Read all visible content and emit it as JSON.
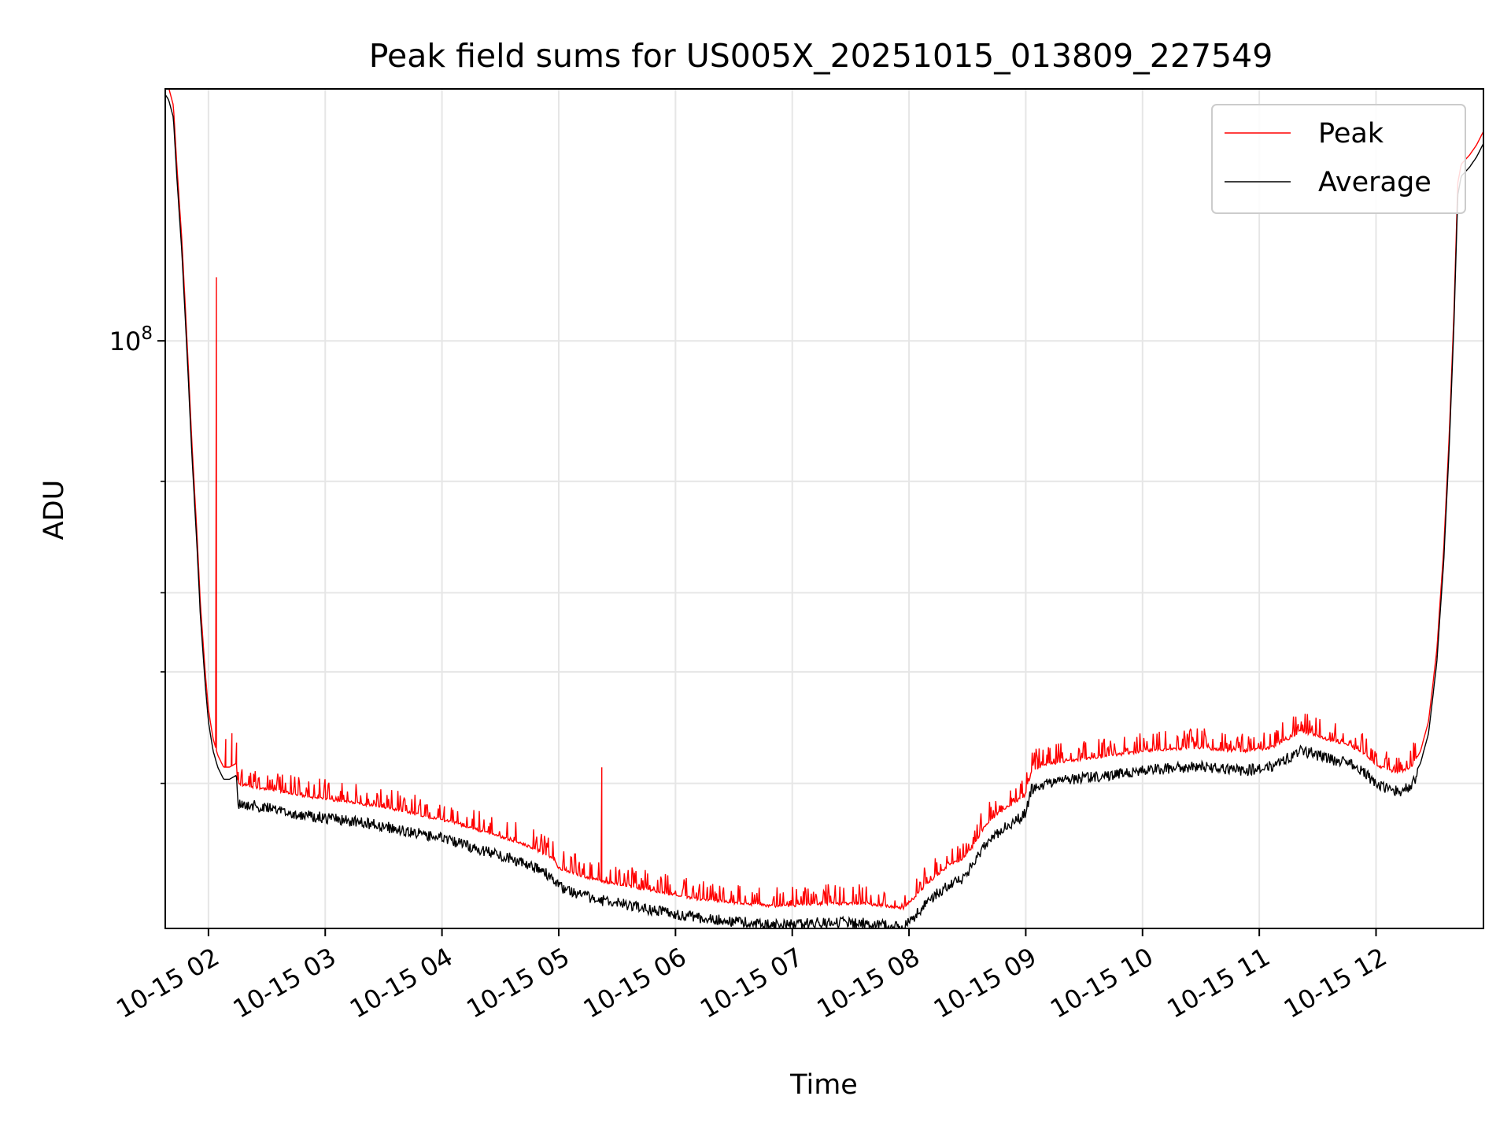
{
  "chart_data": {
    "type": "line",
    "title": "Peak field sums for US005X_20251015_013809_227549",
    "xlabel": "Time",
    "ylabel": "ADU",
    "yscale": "log",
    "xlim_hours": [
      1.63,
      12.92
    ],
    "ylim": [
      11800000,
      250000000
    ],
    "x_ticks": [
      {
        "hour": 2,
        "label": "10-15 02"
      },
      {
        "hour": 3,
        "label": "10-15 03"
      },
      {
        "hour": 4,
        "label": "10-15 04"
      },
      {
        "hour": 5,
        "label": "10-15 05"
      },
      {
        "hour": 6,
        "label": "10-15 06"
      },
      {
        "hour": 7,
        "label": "10-15 07"
      },
      {
        "hour": 8,
        "label": "10-15 08"
      },
      {
        "hour": 9,
        "label": "10-15 09"
      },
      {
        "hour": 10,
        "label": "10-15 10"
      },
      {
        "hour": 11,
        "label": "10-15 11"
      },
      {
        "hour": 12,
        "label": "10-15 12"
      }
    ],
    "y_major_ticks": [
      {
        "value": 100000000,
        "base": "10",
        "exp": "8"
      }
    ],
    "y_minor_ticks": [
      20000000,
      30000000,
      40000000,
      60000000
    ],
    "grid": true,
    "legend_position": "upper-right",
    "legend": [
      {
        "name": "Peak",
        "color": "#ff0000"
      },
      {
        "name": "Average",
        "color": "#000000"
      }
    ],
    "average_curve": [
      [
        1.63,
        245000000
      ],
      [
        1.66,
        240000000
      ],
      [
        1.7,
        225000000
      ],
      [
        1.73,
        180000000
      ],
      [
        1.77,
        140000000
      ],
      [
        1.8,
        110000000
      ],
      [
        1.83,
        85000000
      ],
      [
        1.86,
        65000000
      ],
      [
        1.9,
        48000000
      ],
      [
        1.93,
        37000000
      ],
      [
        1.97,
        29000000
      ],
      [
        2.0,
        25000000
      ],
      [
        2.04,
        22500000
      ],
      [
        2.08,
        21200000
      ],
      [
        2.13,
        20300000
      ],
      [
        2.18,
        20300000
      ],
      [
        2.24,
        20600000
      ],
      [
        2.25,
        19000000
      ],
      [
        2.4,
        18800000
      ],
      [
        2.6,
        18500000
      ],
      [
        2.8,
        18200000
      ],
      [
        3.0,
        18000000
      ],
      [
        3.2,
        17800000
      ],
      [
        3.4,
        17600000
      ],
      [
        3.6,
        17300000
      ],
      [
        3.8,
        17000000
      ],
      [
        4.0,
        16700000
      ],
      [
        4.2,
        16300000
      ],
      [
        4.4,
        15900000
      ],
      [
        4.6,
        15500000
      ],
      [
        4.8,
        15000000
      ],
      [
        4.95,
        14500000
      ],
      [
        5.0,
        14000000
      ],
      [
        5.2,
        13600000
      ],
      [
        5.4,
        13300000
      ],
      [
        5.6,
        13100000
      ],
      [
        5.8,
        12900000
      ],
      [
        6.0,
        12700000
      ],
      [
        6.2,
        12500000
      ],
      [
        6.4,
        12400000
      ],
      [
        6.6,
        12300000
      ],
      [
        6.8,
        12200000
      ],
      [
        7.0,
        12200000
      ],
      [
        7.2,
        12300000
      ],
      [
        7.4,
        12300000
      ],
      [
        7.6,
        12300000
      ],
      [
        7.8,
        12200000
      ],
      [
        7.95,
        12100000
      ],
      [
        8.05,
        12600000
      ],
      [
        8.15,
        13200000
      ],
      [
        8.25,
        13700000
      ],
      [
        8.35,
        14200000
      ],
      [
        8.45,
        14400000
      ],
      [
        8.55,
        15200000
      ],
      [
        8.65,
        16300000
      ],
      [
        8.75,
        17000000
      ],
      [
        8.85,
        17500000
      ],
      [
        8.95,
        18000000
      ],
      [
        9.0,
        18300000
      ],
      [
        9.05,
        20000000
      ],
      [
        9.15,
        20300000
      ],
      [
        9.3,
        20600000
      ],
      [
        9.5,
        20800000
      ],
      [
        9.7,
        21000000
      ],
      [
        9.9,
        21300000
      ],
      [
        10.1,
        21500000
      ],
      [
        10.3,
        21600000
      ],
      [
        10.5,
        21700000
      ],
      [
        10.7,
        21500000
      ],
      [
        10.9,
        21400000
      ],
      [
        11.1,
        21700000
      ],
      [
        11.25,
        22400000
      ],
      [
        11.35,
        23000000
      ],
      [
        11.45,
        22800000
      ],
      [
        11.6,
        22300000
      ],
      [
        11.75,
        22000000
      ],
      [
        11.9,
        21200000
      ],
      [
        12.0,
        20400000
      ],
      [
        12.1,
        20000000
      ],
      [
        12.2,
        19800000
      ],
      [
        12.3,
        20200000
      ],
      [
        12.38,
        21500000
      ],
      [
        12.45,
        24000000
      ],
      [
        12.52,
        31000000
      ],
      [
        12.58,
        45000000
      ],
      [
        12.63,
        70000000
      ],
      [
        12.67,
        110000000
      ],
      [
        12.7,
        170000000
      ],
      [
        12.73,
        182000000
      ],
      [
        12.8,
        188000000
      ],
      [
        12.86,
        195000000
      ],
      [
        12.92,
        205000000
      ]
    ],
    "peak_ratio": 1.045,
    "peak_spikes": [
      {
        "hour": 2.07,
        "value": 126000000
      },
      {
        "hour": 5.37,
        "value": 21200000
      },
      {
        "hour": 2.15,
        "value": 23500000
      },
      {
        "hour": 2.2,
        "value": 24000000
      },
      {
        "hour": 2.24,
        "value": 23200000
      },
      {
        "hour": 4.02,
        "value": 18400000
      },
      {
        "hour": 9.1,
        "value": 21800000
      },
      {
        "hour": 11.3,
        "value": 23500000
      }
    ],
    "peak_noise_amplitude": 0.05,
    "average_noise_amplitude": 0.025
  }
}
